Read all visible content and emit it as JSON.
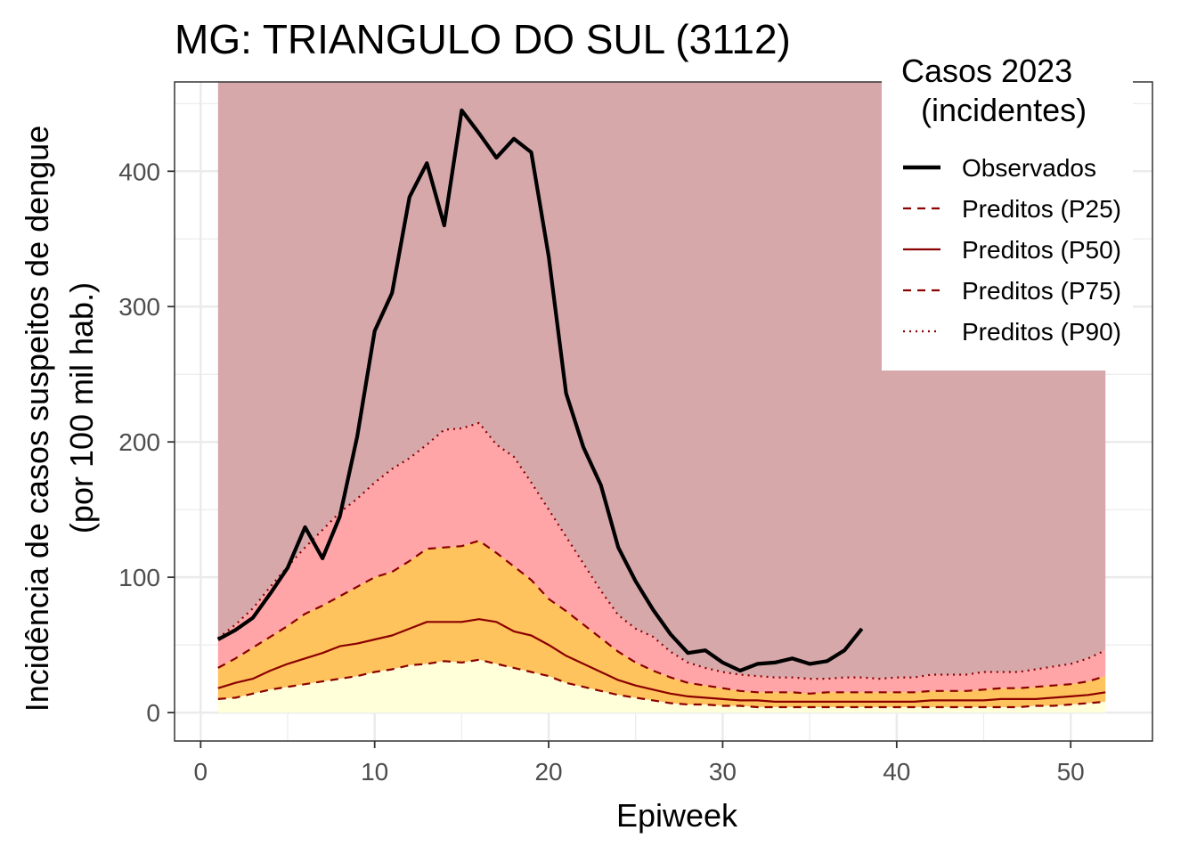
{
  "chart_data": {
    "type": "area",
    "title": "MG: TRIANGULO DO SUL (3112)",
    "xlabel": "Epiweek",
    "ylabel_lines": [
      "Incidência de casos suspeitos de dengue",
      "(por 100 mil hab.)"
    ],
    "xlim": [
      -1.5,
      54.7
    ],
    "ylim": [
      -21,
      466
    ],
    "x_ticks": [
      0,
      10,
      20,
      30,
      40,
      50
    ],
    "y_ticks": [
      0,
      100,
      200,
      300,
      400
    ],
    "grid": true,
    "legend": {
      "position": "top-right",
      "title_lines": [
        "Casos 2023",
        "(incidentes)"
      ],
      "entries": [
        "Observados",
        "Preditos (P25)",
        "Preditos (P50)",
        "Preditos (P75)",
        "Preditos (P90)"
      ]
    },
    "colors": {
      "background_band": "#d6a5a7",
      "band_p75_p90": "#ffa5a8",
      "band_p50_p75": "#fec35d",
      "band_p25_p50": "#fec35d",
      "band_0_p25": "#ffffd9",
      "predicted_line": "#8b0000",
      "observed_line": "#000000",
      "grid": "#ebebeb",
      "panel_border": "#333333"
    },
    "background_band_max": 466,
    "weeks": [
      1,
      2,
      3,
      4,
      5,
      6,
      7,
      8,
      9,
      10,
      11,
      12,
      13,
      14,
      15,
      16,
      17,
      18,
      19,
      20,
      21,
      22,
      23,
      24,
      25,
      26,
      27,
      28,
      29,
      30,
      31,
      32,
      33,
      34,
      35,
      36,
      37,
      38,
      39,
      40,
      41,
      42,
      43,
      44,
      45,
      46,
      47,
      48,
      49,
      50,
      51,
      52
    ],
    "series": [
      {
        "name": "Preditos (P25)",
        "style": "dashed",
        "values": [
          10,
          11,
          14,
          17,
          19,
          21,
          23,
          25,
          27,
          30,
          32,
          35,
          36,
          38,
          37,
          39,
          36,
          33,
          30,
          27,
          22,
          19,
          16,
          13,
          11,
          9,
          7,
          6,
          6,
          5,
          5,
          4,
          4,
          4,
          4,
          4,
          4,
          4,
          4,
          4,
          4,
          4,
          4,
          4,
          4,
          4,
          4,
          5,
          5,
          6,
          7,
          8
        ]
      },
      {
        "name": "Preditos (P50)",
        "style": "solid",
        "values": [
          18,
          22,
          25,
          31,
          36,
          40,
          44,
          49,
          51,
          54,
          57,
          62,
          67,
          67,
          67,
          69,
          67,
          60,
          57,
          50,
          42,
          36,
          30,
          24,
          20,
          17,
          14,
          12,
          11,
          10,
          9,
          9,
          8,
          8,
          8,
          8,
          8,
          8,
          8,
          8,
          8,
          9,
          9,
          9,
          9,
          10,
          10,
          10,
          11,
          12,
          13,
          15
        ]
      },
      {
        "name": "Preditos (P75)",
        "style": "dashed",
        "values": [
          33,
          40,
          48,
          56,
          64,
          73,
          79,
          86,
          93,
          100,
          104,
          112,
          121,
          122,
          123,
          127,
          118,
          108,
          98,
          84,
          75,
          65,
          55,
          45,
          37,
          31,
          26,
          22,
          20,
          18,
          16,
          15,
          15,
          15,
          14,
          15,
          15,
          15,
          15,
          15,
          15,
          16,
          16,
          16,
          17,
          18,
          18,
          19,
          20,
          21,
          23,
          27
        ]
      },
      {
        "name": "Preditos (P90)",
        "style": "dotted",
        "values": [
          55,
          65,
          77,
          93,
          108,
          122,
          135,
          148,
          158,
          170,
          180,
          188,
          198,
          209,
          210,
          214,
          198,
          189,
          170,
          150,
          130,
          110,
          90,
          72,
          62,
          56,
          45,
          37,
          33,
          30,
          28,
          27,
          26,
          26,
          25,
          25,
          26,
          26,
          25,
          26,
          26,
          28,
          28,
          28,
          30,
          30,
          30,
          32,
          34,
          36,
          40,
          46
        ]
      },
      {
        "name": "Observados",
        "style": "solid-thick",
        "values": [
          54,
          61,
          70,
          88,
          107,
          137,
          114,
          145,
          204,
          282,
          310,
          381,
          406,
          360,
          445,
          428,
          410,
          424,
          414,
          337,
          236,
          196,
          168,
          122,
          97,
          76,
          58,
          44,
          46,
          37,
          31,
          36,
          37,
          40,
          36,
          38,
          46,
          62
        ]
      }
    ]
  }
}
